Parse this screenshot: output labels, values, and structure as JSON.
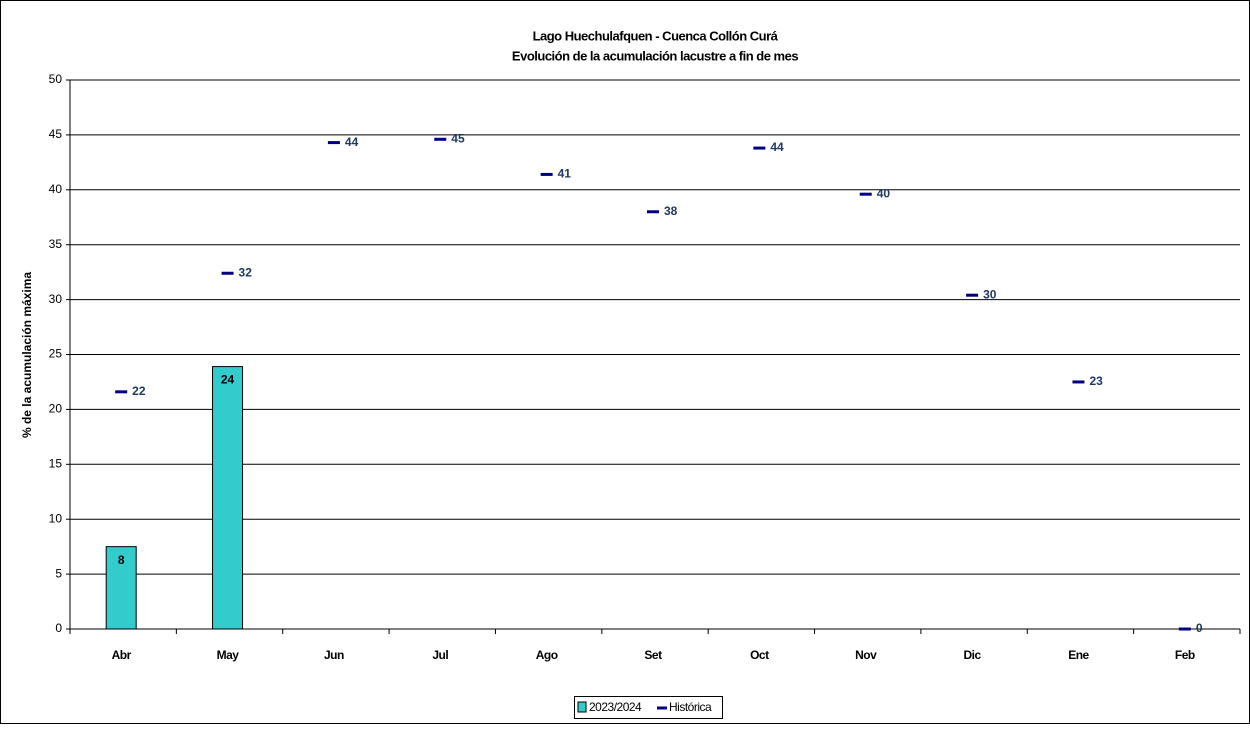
{
  "chart_data": {
    "type": "bar",
    "title": "Lago Huechulafquen - Cuenca Collón Curá",
    "subtitle": "Evolución de la acumulación lacustre a fin de mes",
    "y_label": "% de la acumulación máxima",
    "categories": [
      "Abr",
      "May",
      "Jun",
      "Jul",
      "Ago",
      "Set",
      "Oct",
      "Nov",
      "Dic",
      "Ene",
      "Feb"
    ],
    "series": [
      {
        "name": "2023/2024",
        "type": "bar",
        "color": "#33CCCC",
        "values": [
          7.5,
          23.9,
          null,
          null,
          null,
          null,
          null,
          null,
          null,
          null,
          null
        ],
        "value_labels": [
          "8",
          "24",
          null,
          null,
          null,
          null,
          null,
          null,
          null,
          null,
          null
        ]
      },
      {
        "name": "Histórica",
        "type": "marker",
        "color": "#000080",
        "values": [
          21.6,
          32.4,
          44.3,
          44.6,
          41.4,
          38.0,
          43.8,
          39.6,
          30.4,
          22.5,
          0
        ],
        "value_labels": [
          "22",
          "32",
          "44",
          "45",
          "41",
          "38",
          "44",
          "40",
          "30",
          "23",
          "0"
        ]
      }
    ],
    "ylim": [
      0,
      50
    ],
    "yticks": [
      0,
      5,
      10,
      15,
      20,
      25,
      30,
      35,
      40,
      45,
      50
    ],
    "grid": true,
    "legend": "bottom"
  }
}
